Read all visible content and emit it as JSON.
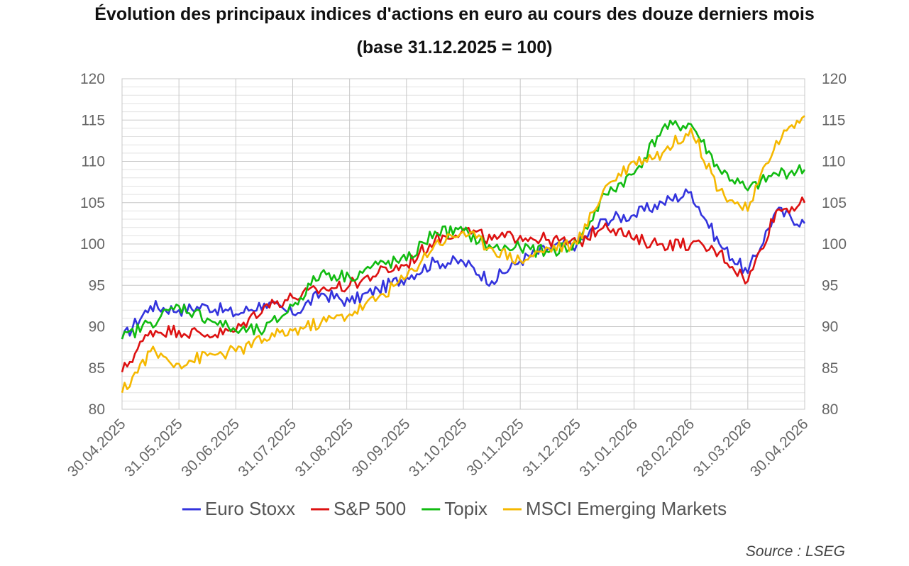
{
  "title": "Évolution des principaux indices d'actions en euro au cours des douze derniers mois",
  "subtitle": "(base 31.12.2025 = 100)",
  "source": "Source : LSEG",
  "chart_data": {
    "type": "line",
    "title": "Évolution des principaux indices d'actions en euro au cours des douze derniers mois",
    "subtitle": "(base 31.12.2025 = 100)",
    "xlabel": "",
    "ylabel": "",
    "ylim": [
      80,
      120
    ],
    "y_ticks": [
      80,
      85,
      90,
      95,
      100,
      105,
      110,
      115,
      120
    ],
    "secondary_y_axis": true,
    "grid": true,
    "legend_position": "bottom",
    "x_tick_labels": [
      "30.04.2025",
      "31.05.2025",
      "30.06.2025",
      "31.07.2025",
      "31.08.2025",
      "30.09.2025",
      "31.10.2025",
      "30.11.2025",
      "31.12.2025",
      "31.01.2026",
      "28.02.2026",
      "31.03.2026",
      "30.04.2026"
    ],
    "x": [
      "30.04.2025",
      "15.05.2025",
      "31.05.2025",
      "15.06.2025",
      "30.06.2025",
      "15.07.2025",
      "31.07.2025",
      "15.08.2025",
      "31.08.2025",
      "15.09.2025",
      "30.09.2025",
      "15.10.2025",
      "31.10.2025",
      "15.11.2025",
      "30.11.2025",
      "15.12.2025",
      "31.12.2025",
      "15.01.2026",
      "31.01.2026",
      "14.02.2026",
      "28.02.2026",
      "15.03.2026",
      "31.03.2026",
      "15.04.2026",
      "30.04.2026"
    ],
    "series": [
      {
        "name": "Euro Stoxx",
        "color": "#3333dd",
        "values": [
          88.5,
          92.5,
          92.0,
          92.5,
          91.5,
          92.8,
          91.5,
          94.0,
          93.0,
          94.5,
          96.0,
          97.8,
          97.8,
          95.5,
          98.0,
          99.5,
          100.0,
          103.0,
          103.5,
          105.0,
          106.3,
          100.0,
          96.5,
          104.0,
          102.5
        ]
      },
      {
        "name": "S&P 500",
        "color": "#dd1111",
        "values": [
          84.5,
          89.5,
          89.5,
          89.0,
          89.5,
          92.5,
          93.5,
          94.5,
          95.0,
          96.5,
          97.5,
          100.5,
          101.8,
          100.5,
          101.0,
          100.5,
          100.0,
          102.5,
          100.5,
          100.0,
          100.0,
          99.0,
          95.5,
          104.0,
          105.0
        ]
      },
      {
        "name": "Topix",
        "color": "#11bb11",
        "values": [
          88.5,
          90.5,
          92.5,
          91.0,
          89.5,
          89.5,
          92.5,
          96.5,
          96.0,
          97.5,
          98.0,
          101.5,
          101.5,
          99.5,
          99.5,
          99.0,
          100.0,
          106.0,
          108.5,
          114.0,
          114.5,
          109.0,
          106.5,
          108.5,
          109.0
        ]
      },
      {
        "name": "MSCI Emerging Markets",
        "color": "#f5b800",
        "values": [
          82.0,
          87.0,
          85.5,
          86.5,
          87.0,
          88.5,
          89.5,
          90.5,
          91.5,
          93.5,
          96.0,
          100.0,
          101.5,
          99.5,
          98.0,
          99.5,
          100.0,
          107.0,
          110.0,
          111.0,
          114.0,
          106.5,
          104.0,
          112.5,
          115.5
        ]
      }
    ]
  }
}
